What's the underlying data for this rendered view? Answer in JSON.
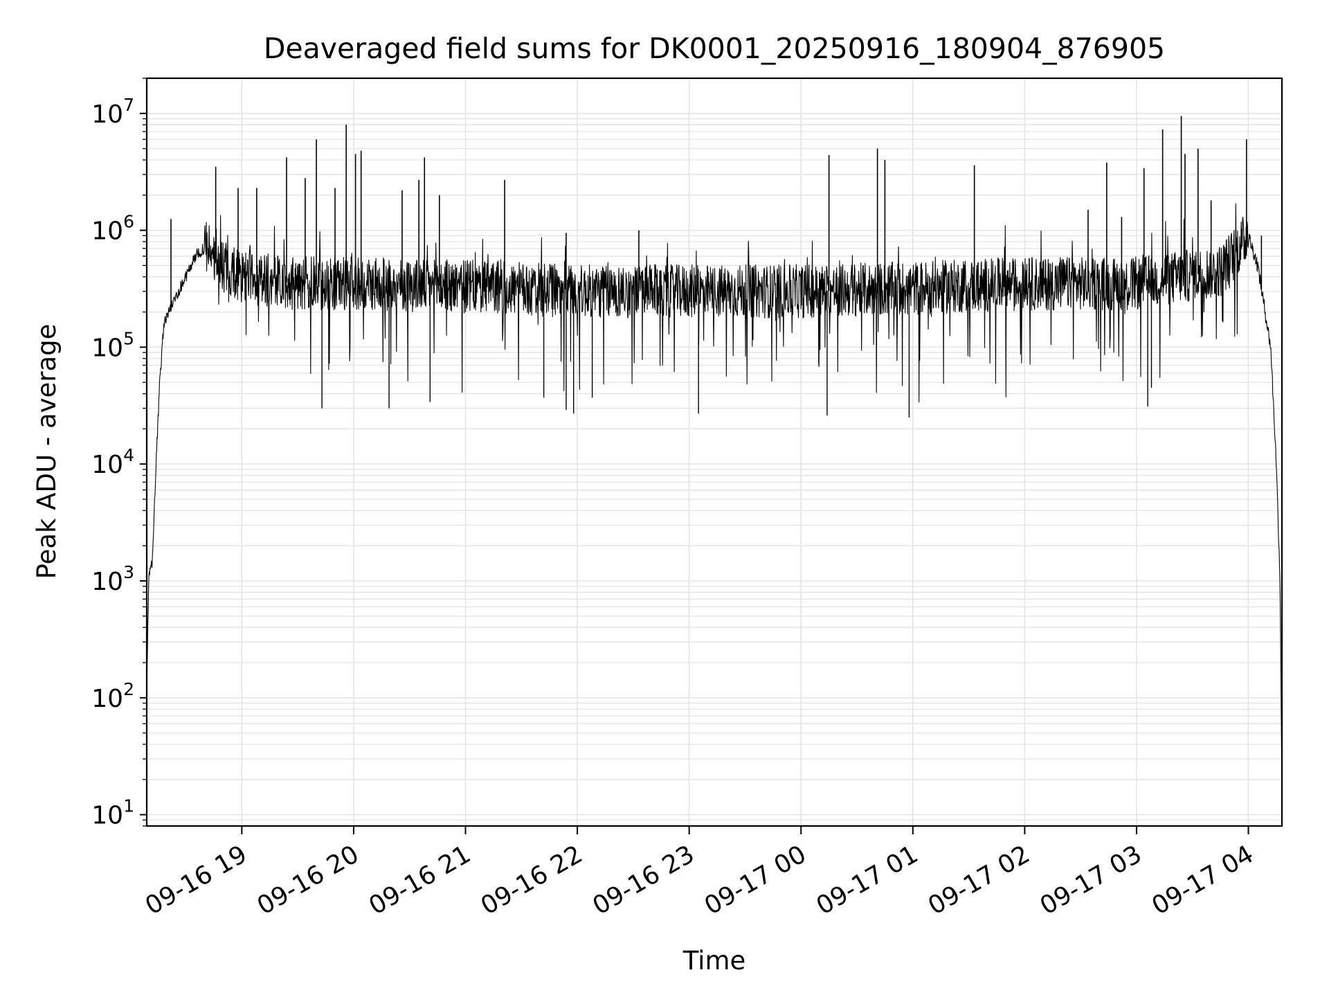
{
  "chart_data": {
    "type": "line",
    "title": "Deaveraged field sums for DK0001_20250916_180904_876905",
    "xlabel": "Time",
    "ylabel": "Peak ADU - average",
    "yscale": "log",
    "ylim": [
      8,
      20000000
    ],
    "xlim": [
      "2025-09-16 18:09",
      "2025-09-17 04:18"
    ],
    "grid": true,
    "y_ticks": [
      {
        "base": "10",
        "exp": "1",
        "value": 10
      },
      {
        "base": "10",
        "exp": "2",
        "value": 100
      },
      {
        "base": "10",
        "exp": "3",
        "value": 1000
      },
      {
        "base": "10",
        "exp": "4",
        "value": 10000
      },
      {
        "base": "10",
        "exp": "5",
        "value": 100000
      },
      {
        "base": "10",
        "exp": "6",
        "value": 1000000
      },
      {
        "base": "10",
        "exp": "7",
        "value": 10000000
      }
    ],
    "x_ticks": [
      {
        "label": "09-16 19",
        "time": "2025-09-16 19:00"
      },
      {
        "label": "09-16 20",
        "time": "2025-09-16 20:00"
      },
      {
        "label": "09-16 21",
        "time": "2025-09-16 21:00"
      },
      {
        "label": "09-16 22",
        "time": "2025-09-16 22:00"
      },
      {
        "label": "09-16 23",
        "time": "2025-09-16 23:00"
      },
      {
        "label": "09-17 00",
        "time": "2025-09-17 00:00"
      },
      {
        "label": "09-17 01",
        "time": "2025-09-17 01:00"
      },
      {
        "label": "09-17 02",
        "time": "2025-09-17 02:00"
      },
      {
        "label": "09-17 03",
        "time": "2025-09-17 03:00"
      },
      {
        "label": "09-17 04",
        "time": "2025-09-17 04:00"
      }
    ],
    "series": [
      {
        "color": "#000000",
        "x": [
          "2025-09-16 18:09",
          "2025-09-16 18:10",
          "2025-09-16 18:12",
          "2025-09-16 18:14",
          "2025-09-16 18:16",
          "2025-09-16 18:18",
          "2025-09-16 18:20",
          "2025-09-16 18:22",
          "2025-09-16 18:25",
          "2025-09-16 18:30",
          "2025-09-16 18:35",
          "2025-09-16 18:40",
          "2025-09-16 18:45",
          "2025-09-16 18:50",
          "2025-09-16 19:00",
          "2025-09-16 19:30",
          "2025-09-16 20:00",
          "2025-09-16 21:00",
          "2025-09-16 22:00",
          "2025-09-16 23:00",
          "2025-09-17 00:00",
          "2025-09-17 01:00",
          "2025-09-17 02:00",
          "2025-09-17 03:00",
          "2025-09-17 03:45",
          "2025-09-17 04:00",
          "2025-09-17 04:05",
          "2025-09-17 04:09",
          "2025-09-17 04:12",
          "2025-09-17 04:15",
          "2025-09-17 04:17",
          "2025-09-17 04:18"
        ],
        "y": [
          100,
          1000,
          1500,
          10000,
          50000,
          150000,
          190000,
          220000,
          280000,
          400000,
          600000,
          700000,
          650000,
          500000,
          400000,
          350000,
          350000,
          330000,
          300000,
          300000,
          300000,
          320000,
          350000,
          350000,
          450000,
          900000,
          500000,
          200000,
          100000,
          10000,
          1000,
          15
        ]
      }
    ],
    "spikes": [
      {
        "time": "2025-09-16 18:22",
        "value": 1250000
      },
      {
        "time": "2025-09-16 18:46",
        "value": 3500000
      },
      {
        "time": "2025-09-16 18:58",
        "value": 2300000
      },
      {
        "time": "2025-09-16 19:08",
        "value": 2300000
      },
      {
        "time": "2025-09-16 19:24",
        "value": 4200000
      },
      {
        "time": "2025-09-16 19:34",
        "value": 2800000
      },
      {
        "time": "2025-09-16 19:40",
        "value": 6000000
      },
      {
        "time": "2025-09-16 19:50",
        "value": 2300000
      },
      {
        "time": "2025-09-16 19:56",
        "value": 8000000
      },
      {
        "time": "2025-09-16 20:01",
        "value": 4500000
      },
      {
        "time": "2025-09-16 20:04",
        "value": 4800000
      },
      {
        "time": "2025-09-16 20:26",
        "value": 2200000
      },
      {
        "time": "2025-09-16 20:35",
        "value": 2700000
      },
      {
        "time": "2025-09-16 20:38",
        "value": 4200000
      },
      {
        "time": "2025-09-16 20:46",
        "value": 2000000
      },
      {
        "time": "2025-09-16 21:21",
        "value": 2700000
      },
      {
        "time": "2025-09-16 21:54",
        "value": 950000
      },
      {
        "time": "2025-09-16 22:33",
        "value": 1000000
      },
      {
        "time": "2025-09-17 00:15",
        "value": 4400000
      },
      {
        "time": "2025-09-17 00:41",
        "value": 5000000
      },
      {
        "time": "2025-09-17 00:45",
        "value": 4000000
      },
      {
        "time": "2025-09-17 01:33",
        "value": 3600000
      },
      {
        "time": "2025-09-17 02:34",
        "value": 1500000
      },
      {
        "time": "2025-09-17 02:44",
        "value": 3800000
      },
      {
        "time": "2025-09-17 02:52",
        "value": 1300000
      },
      {
        "time": "2025-09-17 03:04",
        "value": 3400000
      },
      {
        "time": "2025-09-17 03:14",
        "value": 7300000
      },
      {
        "time": "2025-09-17 03:24",
        "value": 9500000
      },
      {
        "time": "2025-09-17 03:26",
        "value": 4500000
      },
      {
        "time": "2025-09-17 03:33",
        "value": 5000000
      },
      {
        "time": "2025-09-17 03:40",
        "value": 1800000
      },
      {
        "time": "2025-09-17 03:59",
        "value": 6000000
      },
      {
        "time": "2025-09-17 04:07",
        "value": 900000
      }
    ],
    "dips": [
      {
        "time": "2025-09-16 19:43",
        "value": 30000
      },
      {
        "time": "2025-09-16 20:19",
        "value": 30000
      },
      {
        "time": "2025-09-16 20:41",
        "value": 34000
      },
      {
        "time": "2025-09-16 21:42",
        "value": 37000
      },
      {
        "time": "2025-09-16 21:54",
        "value": 29000
      },
      {
        "time": "2025-09-16 21:58",
        "value": 27000
      },
      {
        "time": "2025-09-16 22:08",
        "value": 37000
      },
      {
        "time": "2025-09-16 23:05",
        "value": 27000
      },
      {
        "time": "2025-09-17 00:14",
        "value": 26000
      },
      {
        "time": "2025-09-17 00:58",
        "value": 25000
      },
      {
        "time": "2025-09-17 03:06",
        "value": 31000
      },
      {
        "time": "2025-09-17 03:08",
        "value": 45000
      }
    ]
  }
}
